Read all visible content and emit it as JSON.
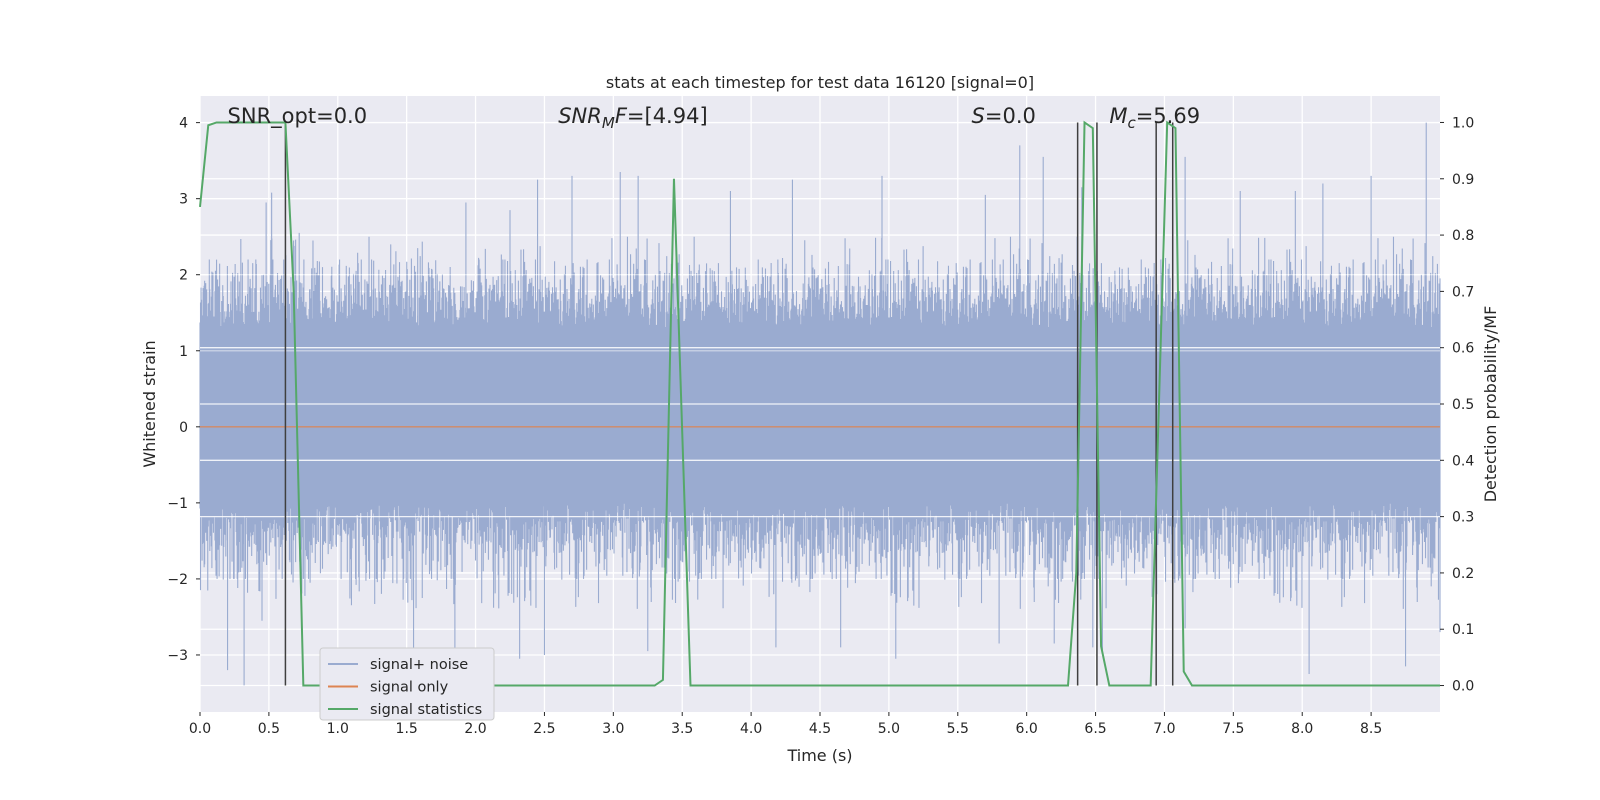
{
  "chart_data": {
    "type": "line",
    "title": "stats at each timestep for test data 16120 [signal=0]",
    "xlabel": "Time (s)",
    "ylabel_left": "Whitened strain",
    "ylabel_right": "Detection probability/MF",
    "xlim": [
      0.0,
      9.0
    ],
    "ylim_left": [
      -3.75,
      4.35
    ],
    "ylim_right": [
      -0.047,
      1.047
    ],
    "x_ticks": [
      "0.0",
      "0.5",
      "1.0",
      "1.5",
      "2.0",
      "2.5",
      "3.0",
      "3.5",
      "4.0",
      "4.5",
      "5.0",
      "5.5",
      "6.0",
      "6.5",
      "7.0",
      "7.5",
      "8.0",
      "8.5"
    ],
    "x_tick_values": [
      0.0,
      0.5,
      1.0,
      1.5,
      2.0,
      2.5,
      3.0,
      3.5,
      4.0,
      4.5,
      5.0,
      5.5,
      6.0,
      6.5,
      7.0,
      7.5,
      8.0,
      8.5
    ],
    "y_left_ticks": [
      "−3",
      "−2",
      "−1",
      "0",
      "1",
      "2",
      "3",
      "4"
    ],
    "y_left_tick_values": [
      -3,
      -2,
      -1,
      0,
      1,
      2,
      3,
      4
    ],
    "y_right_ticks": [
      "0.0",
      "0.1",
      "0.2",
      "0.3",
      "0.4",
      "0.5",
      "0.6",
      "0.7",
      "0.8",
      "0.9",
      "1.0"
    ],
    "y_right_tick_values": [
      0.0,
      0.1,
      0.2,
      0.3,
      0.4,
      0.5,
      0.6,
      0.7,
      0.8,
      0.9,
      1.0
    ],
    "grid": true,
    "legend_position": "lower-left",
    "annotations": [
      {
        "label": "SNR_opt",
        "text": "=0.0",
        "x": 0.2
      },
      {
        "label": "SNR_MF",
        "text": "=[4.94]",
        "x": 2.6
      },
      {
        "label": "S",
        "text": "=0.0",
        "x": 5.6
      },
      {
        "label": "M_c",
        "text": "=5.69",
        "x": 6.6
      }
    ],
    "series": [
      {
        "name": "signal+ noise",
        "color": "#9aabd0",
        "axis": "left",
        "style": "dense-noise",
        "duration_s": 9.0,
        "envelope_typical": [
          -1.5,
          1.8
        ],
        "peaks_high": [
          [
            0.48,
            2.95
          ],
          [
            0.52,
            3.08
          ],
          [
            0.72,
            2.55
          ],
          [
            0.82,
            2.45
          ],
          [
            1.58,
            2.35
          ],
          [
            1.93,
            2.95
          ],
          [
            2.25,
            2.85
          ],
          [
            2.45,
            3.25
          ],
          [
            2.7,
            3.3
          ],
          [
            3.05,
            3.35
          ],
          [
            3.18,
            3.3
          ],
          [
            3.85,
            3.1
          ],
          [
            4.3,
            3.25
          ],
          [
            4.95,
            3.3
          ],
          [
            5.7,
            3.05
          ],
          [
            5.95,
            3.7
          ],
          [
            6.12,
            3.55
          ],
          [
            6.4,
            3.15
          ],
          [
            7.15,
            3.55
          ],
          [
            7.55,
            3.1
          ],
          [
            7.95,
            3.1
          ],
          [
            8.15,
            3.2
          ],
          [
            8.5,
            3.3
          ],
          [
            8.9,
            4.0
          ]
        ],
        "peaks_low": [
          [
            0.2,
            -3.2
          ],
          [
            0.32,
            -3.4
          ],
          [
            0.45,
            -2.55
          ],
          [
            1.55,
            -3.05
          ],
          [
            1.85,
            -3.0
          ],
          [
            2.32,
            -3.05
          ],
          [
            2.5,
            -3.0
          ],
          [
            3.25,
            -2.95
          ],
          [
            4.18,
            -2.9
          ],
          [
            4.65,
            -2.9
          ],
          [
            5.05,
            -3.05
          ],
          [
            5.8,
            -2.85
          ],
          [
            6.2,
            -2.85
          ],
          [
            6.48,
            -2.9
          ],
          [
            6.55,
            -2.95
          ],
          [
            7.15,
            -2.65
          ],
          [
            8.05,
            -3.25
          ],
          [
            8.75,
            -3.15
          ],
          [
            9.0,
            -2.7
          ]
        ]
      },
      {
        "name": "signal only",
        "color": "#dd8452",
        "axis": "left",
        "x": [
          0.0,
          9.0
        ],
        "y": [
          0.0,
          0.0
        ]
      },
      {
        "name": "signal statistics",
        "color": "#55a868",
        "axis": "right",
        "x": [
          0.0,
          0.06,
          0.12,
          0.18,
          0.55,
          0.62,
          0.68,
          0.75,
          0.8,
          3.3,
          3.36,
          3.44,
          3.5,
          3.56,
          3.62,
          6.3,
          6.36,
          6.42,
          6.48,
          6.54,
          6.6,
          6.66,
          6.9,
          6.96,
          7.02,
          7.08,
          7.14,
          7.2,
          9.0
        ],
        "y": [
          0.85,
          0.995,
          1.0,
          1.0,
          1.0,
          1.0,
          0.7,
          0.0,
          0.0,
          0.0,
          0.01,
          0.9,
          0.45,
          0.0,
          0.0,
          0.0,
          0.2,
          1.0,
          0.99,
          0.07,
          0.0,
          0.0,
          0.0,
          0.5,
          1.0,
          0.99,
          0.025,
          0.0,
          0.0
        ]
      }
    ],
    "vertical_markers": [
      0.62,
      6.37,
      6.51,
      6.94,
      7.06
    ],
    "vertical_marker_range_right": [
      0.0,
      1.0
    ]
  }
}
